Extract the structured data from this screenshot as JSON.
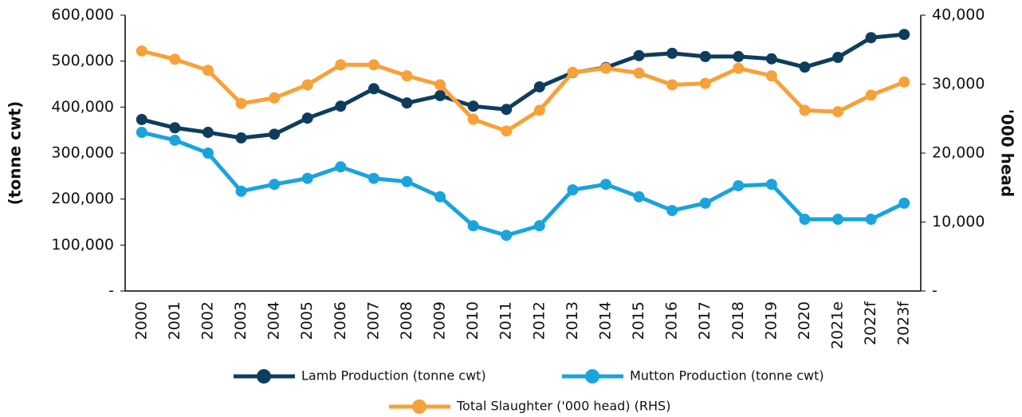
{
  "chart_data": {
    "type": "line",
    "y_label": "(tonne cwt)",
    "y2_label": "'000 head",
    "categories": [
      "2000",
      "2001",
      "2002",
      "2003",
      "2004",
      "2005",
      "2006",
      "2007",
      "2008",
      "2009",
      "2010",
      "2011",
      "2012",
      "2013",
      "2014",
      "2015",
      "2016",
      "2017",
      "2018",
      "2019",
      "2020",
      "2021e",
      "2022f",
      "2023f"
    ],
    "ylim": [
      0,
      600000
    ],
    "yticks": [
      {
        "value": 0,
        "label": "-"
      },
      {
        "value": 100000,
        "label": "100,000"
      },
      {
        "value": 200000,
        "label": "200,000"
      },
      {
        "value": 300000,
        "label": "300,000"
      },
      {
        "value": 400000,
        "label": "400,000"
      },
      {
        "value": 500000,
        "label": "500,000"
      },
      {
        "value": 600000,
        "label": "600,000"
      }
    ],
    "y2lim": [
      0,
      40000
    ],
    "y2ticks": [
      {
        "value": 0,
        "label": "-"
      },
      {
        "value": 10000,
        "label": "10,000"
      },
      {
        "value": 20000,
        "label": "20,000"
      },
      {
        "value": 30000,
        "label": "30,000"
      },
      {
        "value": 40000,
        "label": "40,000"
      }
    ],
    "series": [
      {
        "name": "Lamb Production (tonne cwt)",
        "color": "#0e3d5c",
        "values": [
          373000,
          355000,
          345000,
          333000,
          341000,
          376000,
          402000,
          440000,
          409000,
          425000,
          402000,
          395000,
          444000,
          475000,
          486000,
          512000,
          517000,
          510000,
          510000,
          505000,
          487000,
          508000,
          551000,
          558000
        ]
      },
      {
        "name": "Mutton Production (tonne cwt)",
        "color": "#1ba3dc",
        "values": [
          345000,
          328000,
          300000,
          217000,
          232000,
          245000,
          270000,
          245000,
          238000,
          205000,
          142000,
          121000,
          142000,
          220000,
          232000,
          205000,
          175000,
          191000,
          229000,
          232000,
          156000,
          156000,
          156000,
          191000
        ]
      },
      {
        "name": "Total Slaughter ('000 head) (RHS)",
        "color": "#f7a13a",
        "axis": "y2",
        "values": [
          34800,
          33600,
          32000,
          27200,
          28000,
          29900,
          32800,
          32800,
          31200,
          29900,
          24900,
          23200,
          26200,
          31700,
          32300,
          31600,
          29900,
          30100,
          32300,
          31200,
          26200,
          26000,
          28400,
          30300
        ]
      }
    ]
  }
}
